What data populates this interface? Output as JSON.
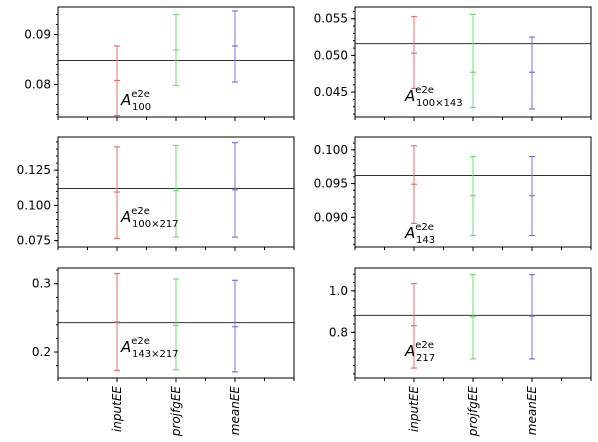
{
  "chart_data": [
    {
      "type": "errorbar",
      "annotation": {
        "base": "A",
        "sup": "e2e",
        "sub": "100"
      },
      "categories": [
        "inputEE",
        "projfgEE",
        "meanEE"
      ],
      "ylim": [
        0.0735,
        0.0955
      ],
      "yticks": [
        0.08,
        0.09
      ],
      "ytick_labels": [
        "0.08",
        "0.09"
      ],
      "ref_line": 0.0848,
      "series": [
        {
          "category": "inputEE",
          "color": "#e8706a",
          "center": 0.0808,
          "low": 0.0738,
          "high": 0.0877
        },
        {
          "category": "projfgEE",
          "color": "#6ddc6d",
          "center": 0.0869,
          "low": 0.0798,
          "high": 0.094
        },
        {
          "category": "meanEE",
          "color": "#7b72e6",
          "center": 0.0877,
          "low": 0.0805,
          "high": 0.0947
        }
      ]
    },
    {
      "type": "errorbar",
      "annotation": {
        "base": "A",
        "sup": "e2e",
        "sub": "100×143"
      },
      "categories": [
        "inputEE",
        "projfgEE",
        "meanEE"
      ],
      "ylim": [
        0.0416,
        0.0566
      ],
      "yticks": [
        0.045,
        0.05,
        0.055
      ],
      "ytick_labels": [
        "0.045",
        "0.050",
        "0.055"
      ],
      "ref_line": 0.0516,
      "series": [
        {
          "category": "inputEE",
          "color": "#e8706a",
          "center": 0.0503,
          "low": 0.0455,
          "high": 0.0553
        },
        {
          "category": "projfgEE",
          "color": "#6ddc6d",
          "center": 0.0477,
          "low": 0.0429,
          "high": 0.0556
        },
        {
          "category": "meanEE",
          "color": "#7b72e6",
          "center": 0.0477,
          "low": 0.0427,
          "high": 0.0525
        }
      ]
    },
    {
      "type": "errorbar",
      "annotation": {
        "base": "A",
        "sup": "e2e",
        "sub": "100×217"
      },
      "categories": [
        "inputEE",
        "projfgEE",
        "meanEE"
      ],
      "ylim": [
        0.0705,
        0.1485
      ],
      "yticks": [
        0.075,
        0.1,
        0.125
      ],
      "ytick_labels": [
        "0.075",
        "0.100",
        "0.125"
      ],
      "ref_line": 0.112,
      "series": [
        {
          "category": "inputEE",
          "color": "#e8706a",
          "center": 0.1095,
          "low": 0.0765,
          "high": 0.1415
        },
        {
          "category": "projfgEE",
          "color": "#6ddc6d",
          "center": 0.1105,
          "low": 0.0775,
          "high": 0.1425
        },
        {
          "category": "meanEE",
          "color": "#7b72e6",
          "center": 0.111,
          "low": 0.0775,
          "high": 0.1445
        }
      ]
    },
    {
      "type": "errorbar",
      "annotation": {
        "base": "A",
        "sup": "e2e",
        "sub": "143"
      },
      "categories": [
        "inputEE",
        "projfgEE",
        "meanEE"
      ],
      "ylim": [
        0.0856,
        0.1019
      ],
      "yticks": [
        0.09,
        0.095,
        0.1
      ],
      "ytick_labels": [
        "0.090",
        "0.095",
        "0.100"
      ],
      "ref_line": 0.0962,
      "series": [
        {
          "category": "inputEE",
          "color": "#e8706a",
          "center": 0.0949,
          "low": 0.0891,
          "high": 0.1006
        },
        {
          "category": "projfgEE",
          "color": "#6ddc6d",
          "center": 0.0932,
          "low": 0.0873,
          "high": 0.099
        },
        {
          "category": "meanEE",
          "color": "#7b72e6",
          "center": 0.0932,
          "low": 0.0873,
          "high": 0.099
        }
      ]
    },
    {
      "type": "errorbar",
      "annotation": {
        "base": "A",
        "sup": "e2e",
        "sub": "143×217"
      },
      "categories": [
        "inputEE",
        "projfgEE",
        "meanEE"
      ],
      "ylim": [
        0.162,
        0.323
      ],
      "yticks": [
        0.2,
        0.3
      ],
      "ytick_labels": [
        "0.2",
        "0.3"
      ],
      "ref_line": 0.243,
      "series": [
        {
          "category": "inputEE",
          "color": "#e8706a",
          "center": 0.244,
          "low": 0.173,
          "high": 0.315
        },
        {
          "category": "projfgEE",
          "color": "#6ddc6d",
          "center": 0.239,
          "low": 0.174,
          "high": 0.307
        },
        {
          "category": "meanEE",
          "color": "#7b72e6",
          "center": 0.237,
          "low": 0.171,
          "high": 0.305
        }
      ]
    },
    {
      "type": "errorbar",
      "annotation": {
        "base": "A",
        "sup": "e2e",
        "sub": "217"
      },
      "categories": [
        "inputEE",
        "projfgEE",
        "meanEE"
      ],
      "ylim": [
        0.58,
        1.11
      ],
      "yticks": [
        0.8,
        1.0
      ],
      "ytick_labels": [
        "0.8",
        "1.0"
      ],
      "ref_line": 0.882,
      "series": [
        {
          "category": "inputEE",
          "color": "#e8706a",
          "center": 0.832,
          "low": 0.628,
          "high": 1.035
        },
        {
          "category": "projfgEE",
          "color": "#6ddc6d",
          "center": 0.875,
          "low": 0.672,
          "high": 1.078
        },
        {
          "category": "meanEE",
          "color": "#7b72e6",
          "center": 0.878,
          "low": 0.672,
          "high": 1.078
        }
      ]
    }
  ]
}
